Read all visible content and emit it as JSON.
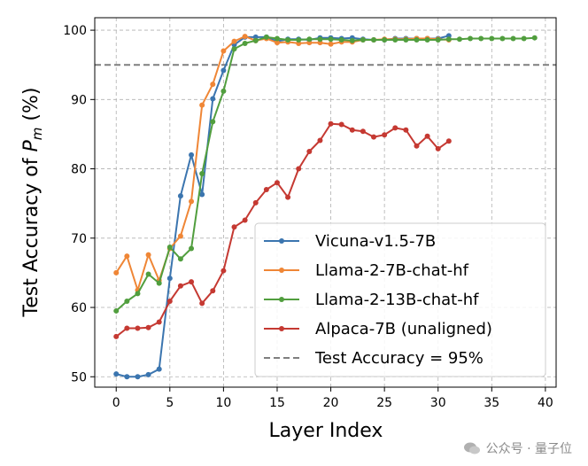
{
  "chart_data": {
    "type": "line",
    "xlabel": "Layer Index",
    "ylabel_prefix": "Test Accuracy of ",
    "ylabel_var": "P",
    "ylabel_sub": "m",
    "ylabel_suffix": " (%)",
    "xlim": [
      -2,
      41
    ],
    "ylim": [
      48.5,
      101.8
    ],
    "xticks": [
      0,
      5,
      10,
      15,
      20,
      25,
      30,
      35,
      40
    ],
    "yticks": [
      50,
      60,
      70,
      80,
      90,
      100
    ],
    "grid": true,
    "legend_position": "lower-right",
    "reference_line": {
      "name": "Test Accuracy = 95%",
      "y": 95,
      "color": "#7f7f7f"
    },
    "series": [
      {
        "name": "Vicuna-v1.5-7B",
        "color": "#3b75af",
        "x": [
          0,
          1,
          2,
          3,
          4,
          5,
          6,
          7,
          8,
          9,
          10,
          11,
          12,
          13,
          14,
          15,
          16,
          17,
          18,
          19,
          20,
          21,
          22,
          23,
          24,
          25,
          26,
          27,
          28,
          29,
          30,
          31
        ],
        "values": [
          50.4,
          50.0,
          50.0,
          50.3,
          51.1,
          64.2,
          76.1,
          82.0,
          76.3,
          90.1,
          94.2,
          97.9,
          99.0,
          99.0,
          99.0,
          98.4,
          98.7,
          98.7,
          98.6,
          98.9,
          98.9,
          98.8,
          98.9,
          98.7,
          98.6,
          98.6,
          98.8,
          98.8,
          98.8,
          98.8,
          98.8,
          99.2
        ]
      },
      {
        "name": "Llama-2-7B-chat-hf",
        "color": "#ef8636",
        "x": [
          0,
          1,
          2,
          3,
          4,
          5,
          6,
          7,
          8,
          9,
          10,
          11,
          12,
          13,
          14,
          15,
          16,
          17,
          18,
          19,
          20,
          21,
          22,
          23,
          24,
          25,
          26,
          27,
          28,
          29,
          30,
          31
        ],
        "values": [
          65.0,
          67.4,
          62.5,
          67.6,
          63.9,
          68.5,
          70.3,
          75.3,
          89.2,
          92.2,
          97.0,
          98.4,
          99.1,
          98.5,
          98.8,
          98.2,
          98.3,
          98.1,
          98.2,
          98.2,
          98.0,
          98.3,
          98.3,
          98.6,
          98.6,
          98.7,
          98.7,
          98.7,
          98.8,
          98.8,
          98.7,
          98.6
        ]
      },
      {
        "name": "Llama-2-13B-chat-hf",
        "color": "#519e3e",
        "x": [
          0,
          1,
          2,
          3,
          4,
          5,
          6,
          7,
          8,
          9,
          10,
          11,
          12,
          13,
          14,
          15,
          16,
          17,
          18,
          19,
          20,
          21,
          22,
          23,
          24,
          25,
          26,
          27,
          28,
          29,
          30,
          31,
          32,
          33,
          34,
          35,
          36,
          37,
          38,
          39
        ],
        "values": [
          59.5,
          60.9,
          62.0,
          64.8,
          63.5,
          68.7,
          67.0,
          68.5,
          79.3,
          86.8,
          91.2,
          97.3,
          98.1,
          98.5,
          99.0,
          98.8,
          98.6,
          98.6,
          98.7,
          98.7,
          98.7,
          98.6,
          98.5,
          98.6,
          98.6,
          98.6,
          98.6,
          98.6,
          98.6,
          98.6,
          98.6,
          98.7,
          98.7,
          98.8,
          98.8,
          98.8,
          98.8,
          98.8,
          98.8,
          98.9
        ]
      },
      {
        "name": "Alpaca-7B (unaligned)",
        "color": "#c53932",
        "x": [
          0,
          1,
          2,
          3,
          4,
          5,
          6,
          7,
          8,
          9,
          10,
          11,
          12,
          13,
          14,
          15,
          16,
          17,
          18,
          19,
          20,
          21,
          22,
          23,
          24,
          25,
          26,
          27,
          28,
          29,
          30,
          31
        ],
        "values": [
          55.8,
          57.0,
          57.0,
          57.1,
          57.9,
          60.9,
          63.1,
          63.7,
          60.6,
          62.4,
          65.3,
          71.6,
          72.6,
          75.1,
          77.0,
          78.0,
          75.9,
          80.0,
          82.5,
          84.1,
          86.5,
          86.4,
          85.6,
          85.4,
          84.6,
          84.9,
          85.9,
          85.6,
          83.3,
          84.7,
          82.9,
          84.0
        ]
      }
    ]
  },
  "watermark": {
    "text": "公众号 · 量子位"
  }
}
